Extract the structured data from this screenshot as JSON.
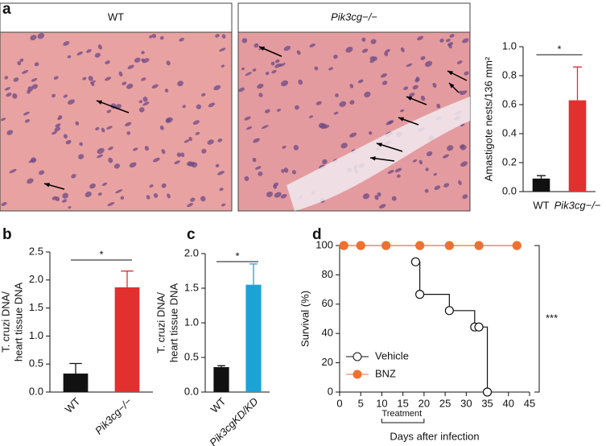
{
  "figure": {
    "panel_labels": [
      "a",
      "b",
      "c",
      "d"
    ],
    "image_labels": [
      "WT",
      "Pik3cg−/−"
    ]
  },
  "chart_data": [
    {
      "type": "bar",
      "ylabel": "Amastigote nests/136 mm²",
      "categories": [
        "WT",
        "Pik3cg−/−"
      ],
      "values": [
        0.09,
        0.63
      ],
      "errors": [
        0.02,
        0.23
      ],
      "colors": [
        "#111111",
        "#e2302f"
      ],
      "ylim": [
        0,
        1.0
      ],
      "yticks": [
        {
          "value": 0,
          "label": "0.0"
        },
        0.2,
        0.4,
        0.6,
        0.8,
        {
          "value": 1.0,
          "label": "1.0"
        }
      ],
      "significance": "*",
      "xtick_rotation": 0
    },
    {
      "type": "bar",
      "ylabel": [
        "T. cruzi DNA/",
        "heart tissue DNA"
      ],
      "categories": [
        "WT",
        "Pik3cg−/−"
      ],
      "values": [
        0.33,
        1.87
      ],
      "errors": [
        0.18,
        0.29
      ],
      "colors": [
        "#111111",
        "#e2302f"
      ],
      "ylim": [
        0,
        2.5
      ],
      "yticks": [
        {
          "value": 0,
          "label": "0.0"
        },
        0.5,
        {
          "value": 1,
          "label": "1.0"
        },
        1.5,
        {
          "value": 2,
          "label": "2.0"
        },
        2.5
      ],
      "significance": "*",
      "xtick_rotation": -45
    },
    {
      "type": "bar",
      "ylabel": [
        "T. cruzi DNA/",
        "heart tissue DNA"
      ],
      "categories": [
        "WT",
        "Pik3cgKD/KD"
      ],
      "values": [
        0.36,
        1.55
      ],
      "errors": [
        0.02,
        0.3
      ],
      "colors": [
        "#111111",
        "#1ba3d6"
      ],
      "ylim": [
        0,
        2.0
      ],
      "yticks": [
        {
          "value": 0,
          "label": "0.0"
        },
        0.5,
        {
          "value": 1,
          "label": "1.0"
        },
        1.5,
        {
          "value": 2,
          "label": "2.0"
        }
      ],
      "significance": "*",
      "xtick_rotation": -45
    },
    {
      "type": "line",
      "step": true,
      "xlabel": "Days after infection",
      "ylabel": "Survival (%)",
      "series": [
        {
          "name": "Vehicle",
          "color": "#111111",
          "marker": "open",
          "x": [
            18,
            19,
            26,
            32,
            33,
            35
          ],
          "values": [
            88.9,
            66.7,
            55.6,
            44.4,
            44.4,
            0
          ]
        },
        {
          "name": "BNZ",
          "color": "#f07030",
          "marker": "filled",
          "x": [
            1,
            5,
            11,
            19,
            26,
            33,
            42
          ],
          "values": [
            100,
            100,
            100,
            100,
            100,
            100,
            100
          ]
        }
      ],
      "xlim": [
        0,
        45
      ],
      "xticks": [
        0,
        5,
        10,
        15,
        20,
        25,
        30,
        35,
        40,
        45
      ],
      "ylim": [
        0,
        100
      ],
      "yticks": [
        0,
        20,
        40,
        60,
        80,
        100
      ],
      "legend": "lower left",
      "annotation": "Treatment",
      "treatment_period": [
        10,
        20
      ],
      "significance": "***"
    }
  ]
}
